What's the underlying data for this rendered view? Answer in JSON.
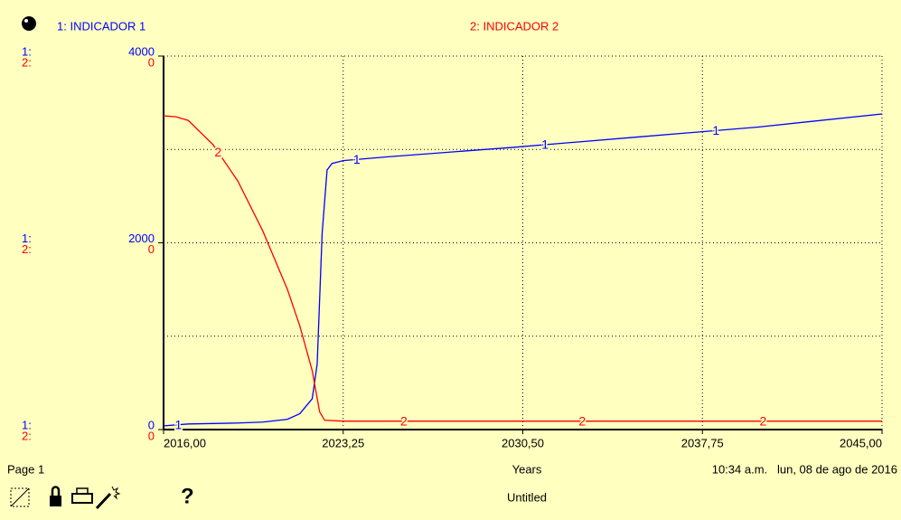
{
  "chart_data": {
    "type": "line",
    "x_label": "Years",
    "footer_left": "Page 1",
    "footer_time": "10:34 a.m.   lun, 08 de ago de 2016",
    "footer_title": "Untitled",
    "help": "?",
    "axis_prefixes": [
      "1:",
      "2:"
    ],
    "xlim": [
      2016,
      2045
    ],
    "xticks": [
      {
        "value": 2016,
        "label": "2016,00"
      },
      {
        "value": 2023.25,
        "label": "2023,25"
      },
      {
        "value": 2030.5,
        "label": "2030,50"
      },
      {
        "value": 2037.75,
        "label": "2037,75"
      },
      {
        "value": 2045,
        "label": "2045,00"
      }
    ],
    "ylim": [
      0,
      4000
    ],
    "yticks": [
      0,
      2000,
      4000
    ],
    "y2lim": [
      0,
      0.4
    ],
    "y2ticks": [
      0,
      {
        "value": 0.2,
        "label": "0"
      },
      {
        "value": 0.4,
        "label": "0"
      }
    ],
    "grid": true,
    "grid_lines": [
      1000,
      3000
    ],
    "series": [
      {
        "name": "1: INDICADOR 1",
        "marker_label": "1",
        "color": "#0000ff",
        "axis": "y",
        "x": [
          2016,
          2017,
          2018,
          2019,
          2020,
          2021,
          2021.5,
          2022,
          2022.2,
          2022.4,
          2022.6,
          2022.8,
          2023.25,
          2025,
          2030,
          2035,
          2040,
          2045
        ],
        "values": [
          40,
          60,
          65,
          70,
          80,
          110,
          170,
          330,
          700,
          2100,
          2780,
          2850,
          2880,
          2920,
          3020,
          3130,
          3240,
          3380
        ],
        "marker_x": [
          2016.6,
          2023.8,
          2031.4,
          2038.3
        ]
      },
      {
        "name": "2: INDICADOR 2",
        "marker_label": "2",
        "color": "#ff0000",
        "axis": "y2",
        "x": [
          2016,
          2016.5,
          2017,
          2018,
          2019,
          2020,
          2021,
          2021.5,
          2022,
          2022.3,
          2022.5,
          2023.25,
          2030,
          2045
        ],
        "values": [
          0.336,
          0.335,
          0.331,
          0.305,
          0.266,
          0.213,
          0.15,
          0.111,
          0.063,
          0.019,
          0.01,
          0.009,
          0.009,
          0.009
        ],
        "marker_x": [
          2018.2,
          2025.7,
          2032.9,
          2040.2
        ]
      }
    ]
  }
}
